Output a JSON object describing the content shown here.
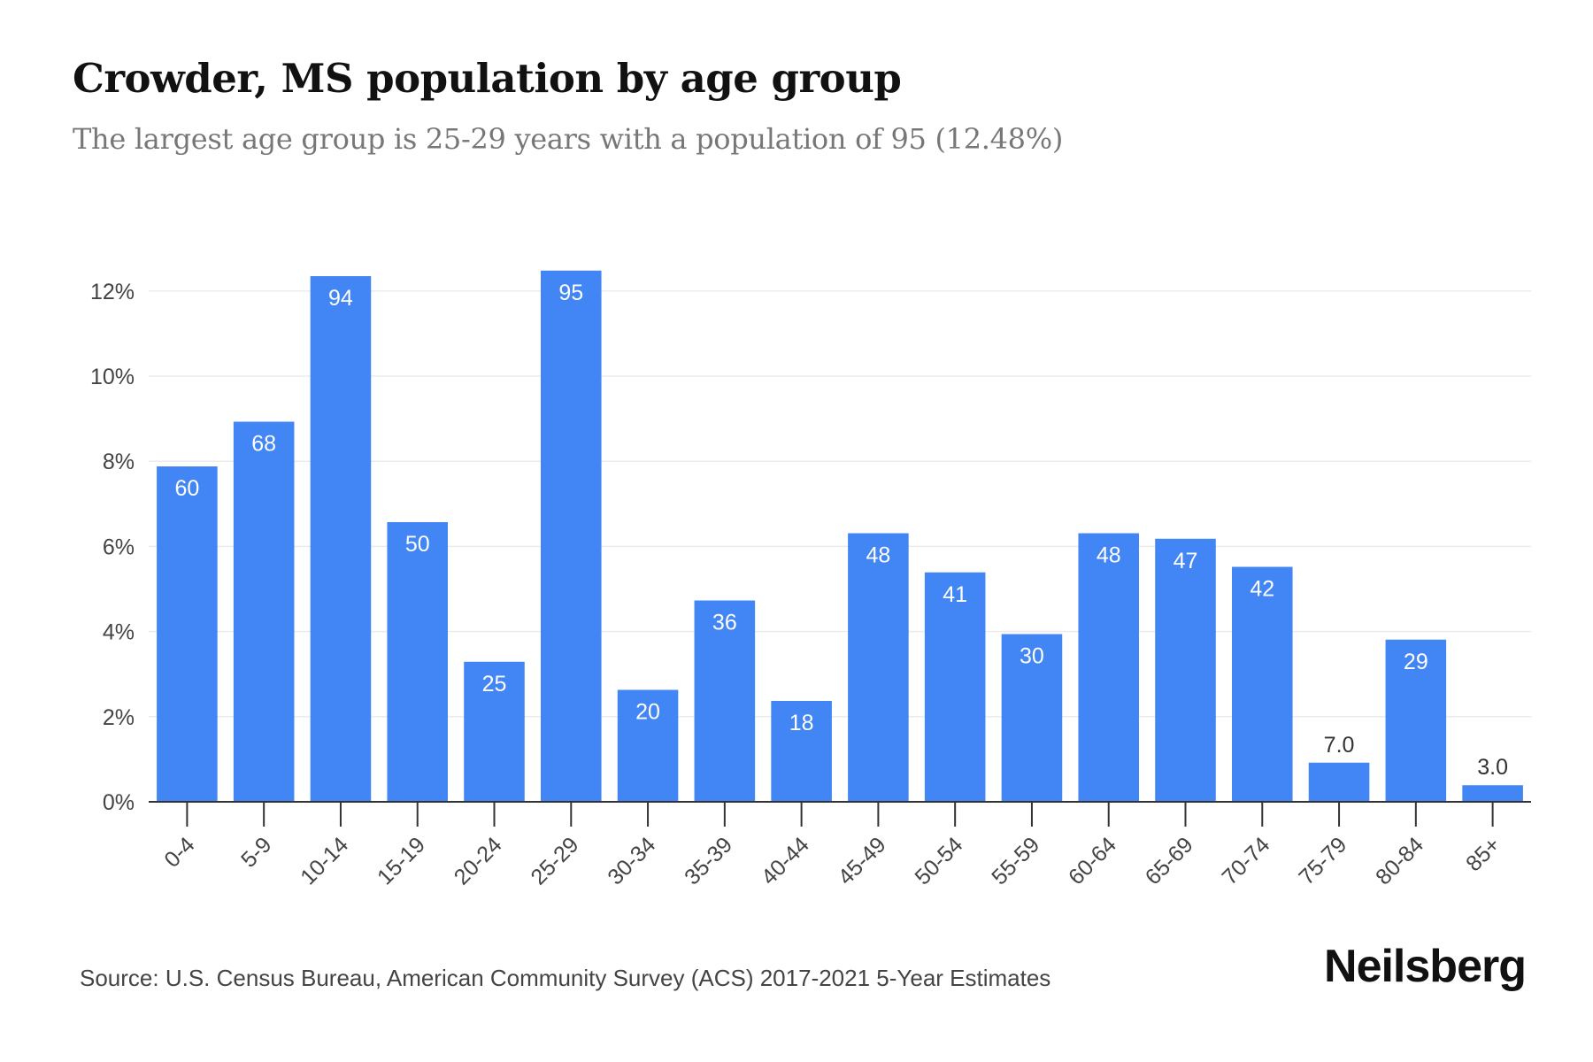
{
  "title": "Crowder, MS population by age group",
  "subtitle": "The largest age group is 25-29 years with a population of 95 (12.48%)",
  "source": "Source: U.S. Census Bureau, American Community Survey (ACS) 2017-2021 5-Year Estimates",
  "brand": "Neilsberg",
  "colors": {
    "bar": "#4285f4",
    "bar_label": "#ffffff",
    "bar_label_outside": "#333333",
    "grid": "#ebebeb",
    "axis": "#333333",
    "tick_text": "#444444"
  },
  "chart_data": {
    "type": "bar",
    "categories": [
      "0-4",
      "5-9",
      "10-14",
      "15-19",
      "20-24",
      "25-29",
      "30-34",
      "35-39",
      "40-44",
      "45-49",
      "50-54",
      "55-59",
      "60-64",
      "65-69",
      "70-74",
      "75-79",
      "80-84",
      "85+"
    ],
    "values": [
      7.88,
      8.93,
      12.35,
      6.57,
      3.29,
      12.48,
      2.63,
      4.73,
      2.37,
      6.31,
      5.39,
      3.94,
      6.31,
      6.18,
      5.52,
      0.92,
      3.81,
      0.39
    ],
    "data_labels": [
      "60",
      "68",
      "94",
      "50",
      "25",
      "95",
      "20",
      "36",
      "18",
      "48",
      "41",
      "30",
      "48",
      "47",
      "42",
      "7.0",
      "29",
      "3.0"
    ],
    "y_ticks": [
      0,
      2,
      4,
      6,
      8,
      10,
      12
    ],
    "y_tick_labels": [
      "0%",
      "2%",
      "4%",
      "6%",
      "8%",
      "10%",
      "12%"
    ],
    "ylim": [
      0,
      12.6
    ],
    "grid": true,
    "xlabel": "",
    "ylabel": ""
  }
}
